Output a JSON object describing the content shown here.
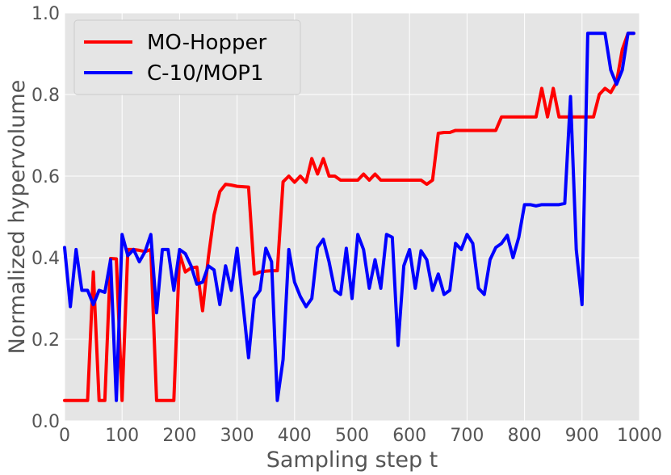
{
  "chart_data": {
    "type": "line",
    "title": "",
    "xlabel": "Sampling step t",
    "ylabel": "Normalized hypervolume",
    "xlim": [
      0,
      1000
    ],
    "ylim": [
      0,
      1.0
    ],
    "xticks": [
      0,
      100,
      200,
      300,
      400,
      500,
      600,
      700,
      800,
      900,
      1000
    ],
    "yticks": [
      0.0,
      0.2,
      0.4,
      0.6,
      0.8,
      1.0
    ],
    "xtick_labels": [
      "0",
      "100",
      "200",
      "300",
      "400",
      "500",
      "600",
      "700",
      "800",
      "900",
      "1000"
    ],
    "ytick_labels": [
      "0.0",
      "0.2",
      "0.4",
      "0.6",
      "0.8",
      "1.0"
    ],
    "grid": true,
    "background": "#e5e5e5",
    "legend_position": "top-left",
    "series": [
      {
        "name": "MO-Hopper",
        "color": "#ff0000",
        "x": [
          0,
          10,
          20,
          30,
          40,
          50,
          60,
          70,
          80,
          90,
          100,
          110,
          120,
          130,
          140,
          150,
          160,
          170,
          180,
          190,
          200,
          210,
          220,
          230,
          240,
          250,
          260,
          270,
          280,
          290,
          300,
          310,
          320,
          330,
          340,
          350,
          360,
          370,
          380,
          390,
          400,
          410,
          420,
          430,
          440,
          450,
          460,
          470,
          480,
          490,
          500,
          510,
          520,
          530,
          540,
          550,
          560,
          570,
          580,
          590,
          600,
          610,
          620,
          630,
          640,
          650,
          660,
          670,
          680,
          690,
          700,
          710,
          720,
          730,
          740,
          750,
          760,
          770,
          780,
          790,
          800,
          810,
          820,
          830,
          840,
          850,
          860,
          870,
          880,
          890,
          900,
          910,
          920,
          930,
          940,
          950,
          960,
          970,
          980,
          990
        ],
        "y": [
          0.05,
          0.05,
          0.05,
          0.05,
          0.05,
          0.365,
          0.05,
          0.05,
          0.398,
          0.397,
          0.05,
          0.42,
          0.42,
          0.418,
          0.415,
          0.42,
          0.05,
          0.05,
          0.05,
          0.05,
          0.41,
          0.365,
          0.375,
          0.377,
          0.27,
          0.4,
          0.505,
          0.562,
          0.58,
          0.578,
          0.575,
          0.574,
          0.573,
          0.36,
          0.365,
          0.367,
          0.368,
          0.368,
          0.586,
          0.6,
          0.585,
          0.6,
          0.585,
          0.643,
          0.605,
          0.643,
          0.6,
          0.6,
          0.59,
          0.59,
          0.59,
          0.59,
          0.605,
          0.59,
          0.605,
          0.59,
          0.59,
          0.59,
          0.59,
          0.59,
          0.59,
          0.59,
          0.59,
          0.58,
          0.59,
          0.705,
          0.707,
          0.707,
          0.712,
          0.712,
          0.712,
          0.712,
          0.712,
          0.712,
          0.712,
          0.712,
          0.745,
          0.745,
          0.745,
          0.745,
          0.745,
          0.745,
          0.745,
          0.815,
          0.745,
          0.815,
          0.745,
          0.745,
          0.745,
          0.745,
          0.745,
          0.745,
          0.745,
          0.8,
          0.815,
          0.805,
          0.83,
          0.91,
          0.95,
          0.95
        ]
      },
      {
        "name": "C-10/MOP1",
        "color": "#0000ff",
        "x": [
          0,
          10,
          20,
          30,
          40,
          50,
          60,
          70,
          80,
          90,
          100,
          110,
          120,
          130,
          140,
          150,
          160,
          170,
          180,
          190,
          200,
          210,
          220,
          230,
          240,
          250,
          260,
          270,
          280,
          290,
          300,
          310,
          320,
          330,
          340,
          350,
          360,
          370,
          380,
          390,
          400,
          410,
          420,
          430,
          440,
          450,
          460,
          470,
          480,
          490,
          500,
          510,
          520,
          530,
          540,
          550,
          560,
          570,
          580,
          590,
          600,
          610,
          620,
          630,
          640,
          650,
          660,
          670,
          680,
          690,
          700,
          710,
          720,
          730,
          740,
          750,
          760,
          770,
          780,
          790,
          800,
          810,
          820,
          830,
          840,
          850,
          860,
          870,
          880,
          890,
          900,
          910,
          920,
          930,
          940,
          950,
          960,
          970,
          980,
          990
        ],
        "y": [
          0.425,
          0.28,
          0.42,
          0.32,
          0.32,
          0.285,
          0.32,
          0.315,
          0.395,
          0.05,
          0.457,
          0.405,
          0.42,
          0.39,
          0.415,
          0.457,
          0.265,
          0.42,
          0.42,
          0.32,
          0.42,
          0.41,
          0.38,
          0.335,
          0.34,
          0.38,
          0.37,
          0.285,
          0.38,
          0.32,
          0.423,
          0.29,
          0.155,
          0.3,
          0.32,
          0.423,
          0.39,
          0.05,
          0.15,
          0.42,
          0.34,
          0.305,
          0.28,
          0.3,
          0.425,
          0.445,
          0.39,
          0.32,
          0.31,
          0.423,
          0.3,
          0.457,
          0.42,
          0.325,
          0.395,
          0.325,
          0.457,
          0.45,
          0.185,
          0.38,
          0.42,
          0.325,
          0.417,
          0.395,
          0.32,
          0.36,
          0.31,
          0.32,
          0.435,
          0.42,
          0.457,
          0.435,
          0.325,
          0.31,
          0.395,
          0.425,
          0.435,
          0.455,
          0.4,
          0.45,
          0.53,
          0.53,
          0.527,
          0.53,
          0.53,
          0.53,
          0.53,
          0.533,
          0.795,
          0.42,
          0.285,
          0.95,
          0.95,
          0.95,
          0.95,
          0.86,
          0.825,
          0.86,
          0.95,
          0.95
        ]
      }
    ]
  }
}
